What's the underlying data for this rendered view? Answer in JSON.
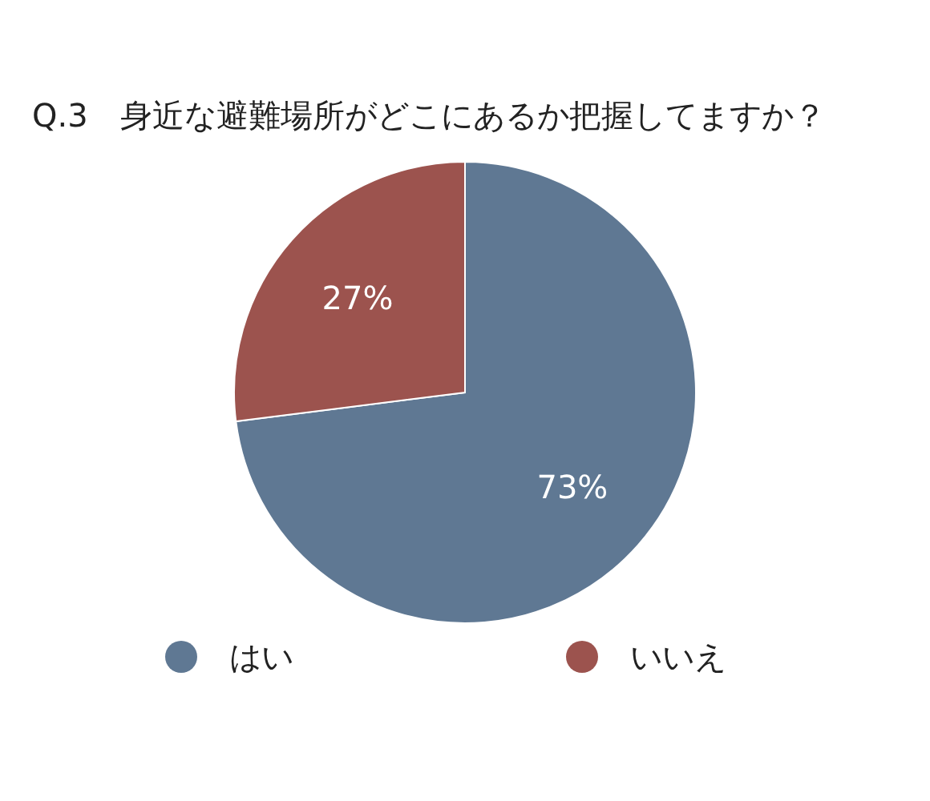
{
  "chart_data": {
    "type": "pie",
    "title": "Q.3　身近な避難場所がどこにあるか把握してますか？",
    "categories": [
      "はい",
      "いいえ"
    ],
    "values": [
      73,
      27
    ],
    "value_labels": [
      "73%",
      "27%"
    ],
    "colors": [
      "#5f7893",
      "#9c534e"
    ],
    "legend": "bottom"
  }
}
